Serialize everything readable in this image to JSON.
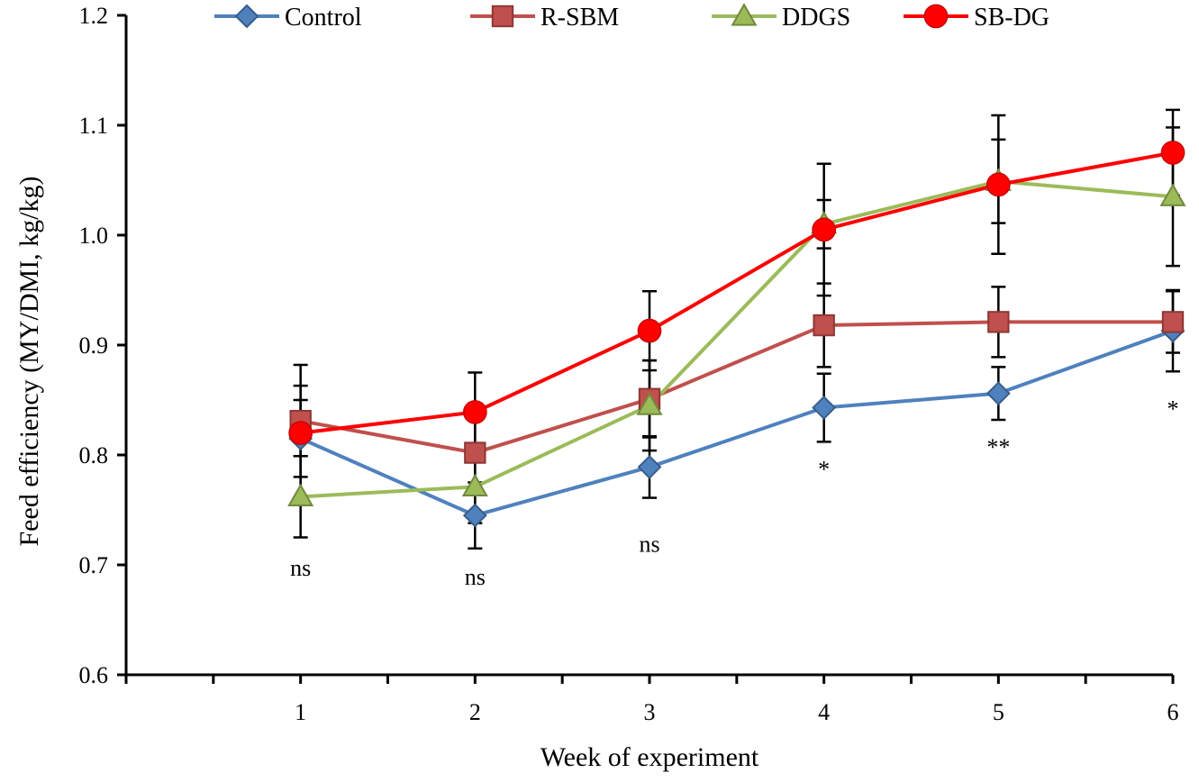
{
  "chart_data": {
    "type": "line",
    "title": "",
    "xlabel": "Week of experiment",
    "ylabel": "Feed efficiency (MY/DMI, kg/kg)",
    "x": [
      1,
      2,
      3,
      4,
      5,
      6
    ],
    "x_tick_labels": [
      "1",
      "2",
      "3",
      "4",
      "5",
      "6"
    ],
    "xlim": [
      0,
      6
    ],
    "ylim": [
      0.6,
      1.2
    ],
    "y_ticks": [
      0.6,
      0.7,
      0.8,
      0.9,
      1.0,
      1.1,
      1.2
    ],
    "y_tick_labels": [
      "0.6",
      "0.7",
      "0.8",
      "0.9",
      "1.0",
      "1.1",
      "1.2"
    ],
    "grid": false,
    "legend_position": "top",
    "series": [
      {
        "name": "Control",
        "color": "#4f81bd",
        "marker": "diamond",
        "values": [
          0.815,
          0.745,
          0.789,
          0.843,
          0.856,
          0.913
        ],
        "errors": [
          0.035,
          0.03,
          0.028,
          0.031,
          0.024,
          0.037
        ]
      },
      {
        "name": "R-SBM",
        "color": "#c0504d",
        "marker": "square",
        "values": [
          0.831,
          0.802,
          0.851,
          0.918,
          0.921,
          0.921
        ],
        "errors": [
          0.032,
          0.035,
          0.035,
          0.038,
          0.032,
          0.028
        ]
      },
      {
        "name": "DDGS",
        "color": "#9bbb59",
        "marker": "triangle",
        "values": [
          0.762,
          0.771,
          0.845,
          1.01,
          1.049,
          1.035
        ],
        "errors": [
          0.037,
          0.033,
          0.041,
          0.022,
          0.038,
          0.063
        ]
      },
      {
        "name": "SB-DG",
        "color": "#ff0000",
        "marker": "circle",
        "values": [
          0.82,
          0.839,
          0.913,
          1.005,
          1.046,
          1.075
        ],
        "errors": [
          0.062,
          0.036,
          0.036,
          0.06,
          0.063,
          0.039
        ]
      }
    ],
    "annotations": [
      {
        "x": 1,
        "y": 0.69,
        "text": "ns"
      },
      {
        "x": 2,
        "y": 0.682,
        "text": "ns"
      },
      {
        "x": 3,
        "y": 0.712,
        "text": "ns"
      },
      {
        "x": 4,
        "y": 0.78,
        "text": "*"
      },
      {
        "x": 5,
        "y": 0.8,
        "text": "**"
      },
      {
        "x": 6,
        "y": 0.835,
        "text": "*"
      }
    ]
  }
}
